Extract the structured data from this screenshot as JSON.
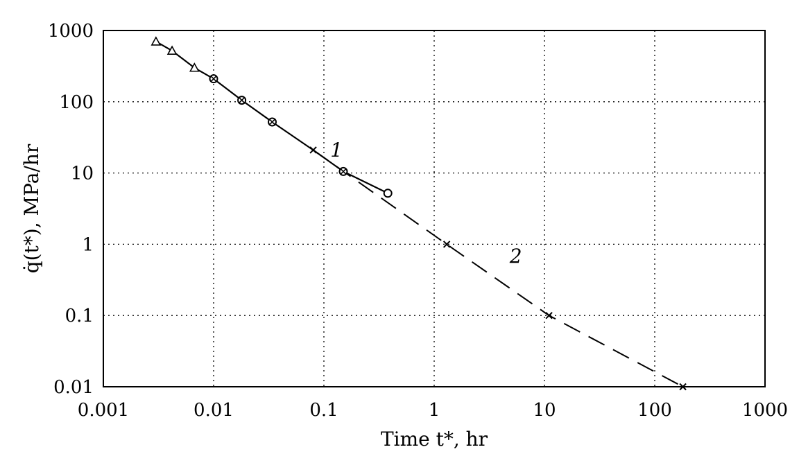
{
  "chart_data": {
    "type": "line",
    "x_scale": "log",
    "y_scale": "log",
    "xlim": [
      0.001,
      1000
    ],
    "ylim": [
      0.01,
      1000
    ],
    "grid": true,
    "x_ticks": [
      0.001,
      0.01,
      0.1,
      1,
      10,
      100,
      1000
    ],
    "y_ticks": [
      0.01,
      0.1,
      1,
      10,
      100,
      1000
    ],
    "x_tick_labels": [
      "0.001",
      "0.01",
      "0.1",
      "1",
      "10",
      "100",
      "1000"
    ],
    "y_tick_labels": [
      "0.01",
      "0.1",
      "1",
      "10",
      "100",
      "1000"
    ],
    "xlabel": "Time t*, hr",
    "ylabel": "q̇(t*), MPa/hr",
    "curve_labels": [
      {
        "text": "1",
        "x": 0.13,
        "y": 17
      },
      {
        "text": "2",
        "x": 5.5,
        "y": 0.55
      }
    ],
    "series": [
      {
        "label": "1",
        "line_style": "solid",
        "x": [
          0.003,
          0.0042,
          0.0067,
          0.01,
          0.018,
          0.034,
          0.08,
          0.15,
          0.38
        ],
        "y": [
          700,
          520,
          300,
          210,
          105,
          52,
          21,
          10.5,
          5.2
        ]
      },
      {
        "label": "2",
        "line_style": "dashed",
        "x": [
          0.08,
          1.3,
          11,
          180
        ],
        "y": [
          21,
          1,
          0.1,
          0.01
        ]
      }
    ],
    "markers": [
      {
        "shape": "triangle",
        "x": [
          0.003,
          0.0042,
          0.0067
        ],
        "y": [
          700,
          520,
          300
        ]
      },
      {
        "shape": "circle-x",
        "x": [
          0.01,
          0.018,
          0.034,
          0.15
        ],
        "y": [
          210,
          105,
          52,
          10.5
        ]
      },
      {
        "shape": "circle",
        "x": [
          0.38
        ],
        "y": [
          5.2
        ]
      },
      {
        "shape": "x",
        "x": [
          0.08,
          1.3,
          11,
          180
        ],
        "y": [
          21,
          1,
          0.1,
          0.01
        ]
      }
    ]
  }
}
